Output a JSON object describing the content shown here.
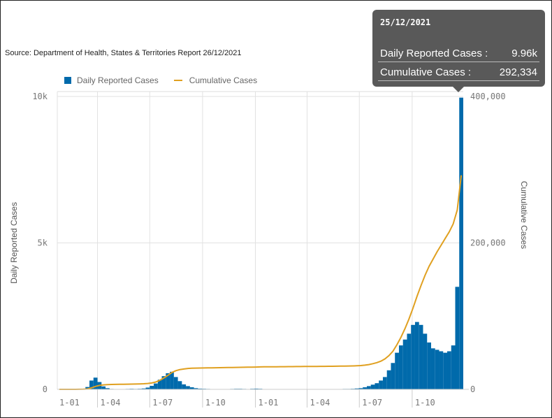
{
  "source": "Source: Department of Health, States & Territories Report 26/12/2021",
  "legend": {
    "daily": "Daily Reported Cases",
    "cumulative": "Cumulative Cases"
  },
  "colors": {
    "daily": "#006aab",
    "cumulative": "#e0a020"
  },
  "tooltip": {
    "date": "25/12/2021",
    "rows": [
      {
        "label": "Daily Reported Cases :",
        "value": "9.96k"
      },
      {
        "label": "Cumulative Cases :",
        "value": "292,334"
      }
    ]
  },
  "chart_data": {
    "type": "bar+line",
    "xlabel": "",
    "ylabel_left": "Daily Reported Cases",
    "ylabel_right": "Cumulative Cases",
    "ylim_left": [
      0,
      10000
    ],
    "ylim_right": [
      0,
      400000
    ],
    "yticks_left": [
      {
        "v": 0,
        "label": "0"
      },
      {
        "v": 5000,
        "label": "5k"
      },
      {
        "v": 10000,
        "label": "10k"
      }
    ],
    "yticks_right": [
      {
        "v": 0,
        "label": "0"
      },
      {
        "v": 200000,
        "label": "200,000"
      },
      {
        "v": 400000,
        "label": "400,000"
      }
    ],
    "x_domain": [
      "2020-01-22",
      "2021-12-29"
    ],
    "xticks": [
      {
        "date": "2020-01-22",
        "label": "1-01",
        "grid": false
      },
      {
        "date": "2020-04-01",
        "label": "1-04",
        "grid": true
      },
      {
        "date": "2020-07-01",
        "label": "1-07",
        "grid": true
      },
      {
        "date": "2020-10-01",
        "label": "1-10",
        "grid": true
      },
      {
        "date": "2021-01-01",
        "label": "1-01",
        "grid": true
      },
      {
        "date": "2021-04-01",
        "label": "1-04",
        "grid": true
      },
      {
        "date": "2021-07-01",
        "label": "1-07",
        "grid": true
      },
      {
        "date": "2021-10-01",
        "label": "1-10",
        "grid": true
      }
    ],
    "series_start": "2020-01-22",
    "step_days": 7,
    "series": [
      {
        "name": "Daily Reported Cases",
        "type": "bar",
        "values": [
          0,
          0,
          2,
          3,
          5,
          10,
          20,
          80,
          300,
          400,
          250,
          100,
          40,
          15,
          10,
          10,
          12,
          15,
          20,
          15,
          20,
          30,
          60,
          120,
          200,
          330,
          450,
          550,
          600,
          420,
          280,
          170,
          110,
          70,
          40,
          25,
          20,
          15,
          12,
          10,
          10,
          10,
          12,
          15,
          20,
          20,
          15,
          12,
          20,
          25,
          20,
          12,
          10,
          8,
          8,
          10,
          10,
          10,
          8,
          8,
          10,
          12,
          12,
          10,
          10,
          10,
          10,
          10,
          10,
          10,
          12,
          15,
          15,
          20,
          30,
          40,
          70,
          110,
          160,
          210,
          300,
          420,
          650,
          900,
          1250,
          1500,
          1700,
          1900,
          2200,
          2300,
          2200,
          1900,
          1600,
          1400,
          1350,
          1300,
          1250,
          1300,
          1500,
          3500,
          9960
        ]
      },
      {
        "name": "Cumulative Cases",
        "type": "line",
        "axis": "right",
        "values": [
          0,
          0,
          10,
          20,
          30,
          60,
          150,
          500,
          2000,
          4000,
          5300,
          6100,
          6500,
          6700,
          6800,
          6900,
          7000,
          7100,
          7200,
          7300,
          7400,
          7600,
          8000,
          8700,
          10000,
          12300,
          15500,
          19000,
          23000,
          25500,
          27000,
          27800,
          28500,
          28800,
          29000,
          29100,
          29200,
          29300,
          29400,
          29500,
          29600,
          29700,
          29800,
          29900,
          30000,
          30100,
          30200,
          30300,
          30400,
          30500,
          30600,
          30700,
          30750,
          30800,
          30850,
          30900,
          30950,
          31000,
          31050,
          31100,
          31150,
          31200,
          31250,
          31300,
          31350,
          31400,
          31450,
          31500,
          31550,
          31600,
          31700,
          31800,
          31900,
          32000,
          32200,
          32500,
          33000,
          33800,
          35000,
          36500,
          38500,
          41500,
          46000,
          52000,
          61000,
          71000,
          83000,
          96000,
          111000,
          127000,
          142000,
          156000,
          168000,
          178000,
          188000,
          197000,
          206000,
          215000,
          226000,
          245000,
          292334
        ]
      }
    ]
  }
}
